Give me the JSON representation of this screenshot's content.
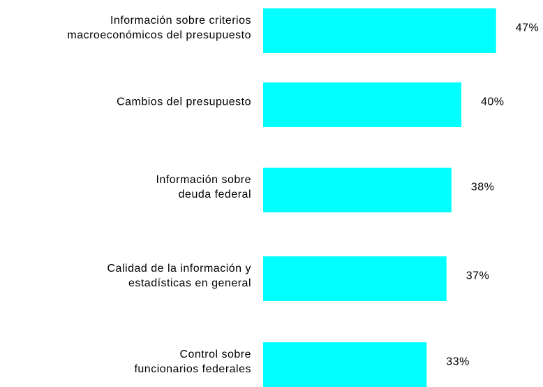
{
  "chart_data": {
    "type": "bar",
    "orientation": "horizontal",
    "categories": [
      "Información sobre criterios\nmacroeconómicos del presupuesto",
      "Cambios del presupuesto",
      "Información sobre\ndeuda federal",
      "Calidad de la información y\nestadísticas  en general",
      "Control sobre\nfuncionarios federales"
    ],
    "values": [
      47,
      40,
      38,
      37,
      33
    ],
    "value_labels": [
      "47%",
      "40%",
      "38%",
      "37%",
      "33%"
    ],
    "color": "#00ffff"
  }
}
